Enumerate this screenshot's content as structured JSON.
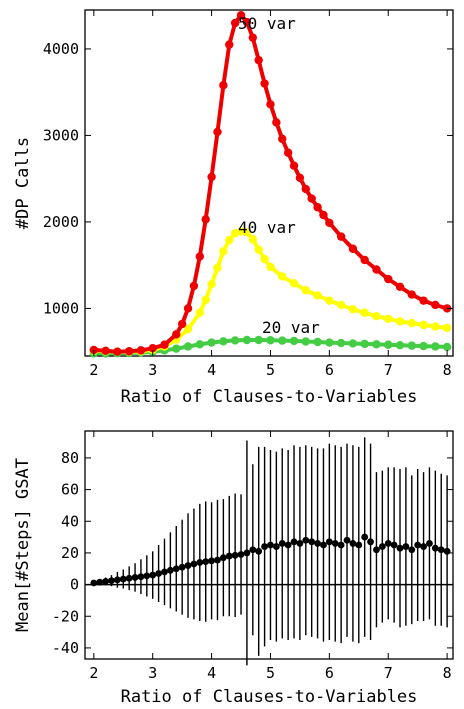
{
  "chart_data": [
    {
      "type": "line",
      "xlabel": "Ratio of Clauses-to-Variables",
      "ylabel": "#DP Calls",
      "xlim": [
        1.85,
        8.1
      ],
      "ylim": [
        450,
        4450
      ],
      "xticks": [
        "2",
        "3",
        "4",
        "5",
        "6",
        "7",
        "8"
      ],
      "yticks": [
        "1000",
        "2000",
        "3000",
        "4000"
      ],
      "grid": false,
      "legend": "none (series labeled directly on curves)",
      "series": [
        {
          "name": "50 var",
          "color": "#ee0000",
          "x": [
            2.0,
            2.2,
            2.4,
            2.6,
            2.8,
            3.0,
            3.2,
            3.4,
            3.5,
            3.6,
            3.7,
            3.8,
            3.9,
            4.0,
            4.1,
            4.2,
            4.3,
            4.4,
            4.5,
            4.6,
            4.7,
            4.8,
            4.9,
            5.0,
            5.1,
            5.2,
            5.3,
            5.4,
            5.5,
            5.6,
            5.7,
            5.8,
            5.9,
            6.0,
            6.2,
            6.4,
            6.6,
            6.8,
            7.0,
            7.2,
            7.4,
            7.6,
            7.8,
            8.0
          ],
          "y": [
            520,
            510,
            500,
            505,
            515,
            540,
            580,
            700,
            820,
            1000,
            1260,
            1600,
            2030,
            2520,
            3040,
            3580,
            4050,
            4300,
            4390,
            4310,
            4130,
            3870,
            3600,
            3360,
            3150,
            2960,
            2800,
            2650,
            2510,
            2380,
            2270,
            2170,
            2080,
            1990,
            1830,
            1690,
            1560,
            1450,
            1340,
            1250,
            1160,
            1090,
            1040,
            1000
          ]
        },
        {
          "name": "40 var",
          "color": "#ffff00",
          "x": [
            2.0,
            2.2,
            2.4,
            2.6,
            2.8,
            3.0,
            3.2,
            3.4,
            3.6,
            3.8,
            3.9,
            4.0,
            4.1,
            4.2,
            4.3,
            4.4,
            4.5,
            4.6,
            4.7,
            4.8,
            4.9,
            5.0,
            5.2,
            5.4,
            5.6,
            5.8,
            6.0,
            6.2,
            6.4,
            6.6,
            6.8,
            7.0,
            7.2,
            7.4,
            7.6,
            7.8,
            8.0
          ],
          "y": [
            510,
            505,
            500,
            500,
            505,
            520,
            560,
            640,
            760,
            950,
            1100,
            1280,
            1470,
            1660,
            1790,
            1870,
            1890,
            1880,
            1800,
            1680,
            1570,
            1480,
            1370,
            1290,
            1210,
            1150,
            1090,
            1040,
            990,
            950,
            910,
            880,
            850,
            830,
            810,
            790,
            775
          ]
        },
        {
          "name": "20 var",
          "color": "#44cc44",
          "x": [
            2.0,
            2.2,
            2.4,
            2.6,
            2.8,
            3.0,
            3.2,
            3.4,
            3.6,
            3.8,
            4.0,
            4.2,
            4.4,
            4.6,
            4.8,
            5.0,
            5.2,
            5.4,
            5.6,
            5.8,
            6.0,
            6.2,
            6.4,
            6.6,
            6.8,
            7.0,
            7.2,
            7.4,
            7.6,
            7.8,
            8.0
          ],
          "y": [
            480,
            480,
            482,
            485,
            490,
            500,
            515,
            535,
            560,
            585,
            605,
            620,
            630,
            635,
            635,
            632,
            628,
            624,
            618,
            612,
            605,
            600,
            595,
            590,
            585,
            580,
            575,
            570,
            565,
            560,
            555
          ]
        }
      ],
      "annotations": [
        "50 var",
        "40 var",
        "20 var"
      ]
    },
    {
      "type": "scatter",
      "subtype": "mean with error bars",
      "xlabel": "Ratio of Clauses-to-Variables",
      "ylabel": "Mean[#Steps] GSAT",
      "xlim": [
        1.85,
        8.1
      ],
      "ylim": [
        -47,
        97
      ],
      "xticks": [
        "2",
        "3",
        "4",
        "5",
        "6",
        "7",
        "8"
      ],
      "yticks": [
        "-40",
        "-20",
        "0",
        "20",
        "40",
        "60",
        "80"
      ],
      "grid": false,
      "zero_line": true,
      "series": [
        {
          "name": "",
          "x": [
            2.0,
            2.1,
            2.2,
            2.3,
            2.4,
            2.5,
            2.6,
            2.7,
            2.8,
            2.9,
            3.0,
            3.1,
            3.2,
            3.3,
            3.4,
            3.5,
            3.6,
            3.7,
            3.8,
            3.9,
            4.0,
            4.1,
            4.2,
            4.3,
            4.4,
            4.5,
            4.6,
            4.7,
            4.8,
            4.9,
            5.0,
            5.1,
            5.2,
            5.3,
            5.4,
            5.5,
            5.6,
            5.7,
            5.8,
            5.9,
            6.0,
            6.1,
            6.2,
            6.3,
            6.4,
            6.5,
            6.6,
            6.7,
            6.8,
            6.9,
            7.0,
            7.1,
            7.2,
            7.3,
            7.4,
            7.5,
            7.6,
            7.7,
            7.8,
            7.9,
            8.0
          ],
          "y": [
            1,
            1.5,
            2,
            2.5,
            3,
            3.5,
            4,
            4.5,
            5,
            5.5,
            6,
            7,
            8,
            9,
            10,
            11,
            12,
            13,
            14,
            14.5,
            15,
            15.5,
            17,
            18,
            18.5,
            19,
            20,
            22,
            21,
            24,
            25,
            24,
            26,
            25,
            27,
            26,
            28,
            27,
            26,
            25,
            27,
            26,
            25,
            28,
            26,
            25,
            30,
            27,
            22,
            24,
            26,
            25,
            23,
            24,
            22,
            25,
            24,
            26,
            23,
            22,
            21
          ],
          "err": [
            1,
            1.5,
            2.5,
            3.5,
            5,
            6,
            7.5,
            9,
            11,
            13,
            15,
            18,
            21,
            24,
            27,
            30,
            33,
            35,
            37,
            38,
            37,
            38,
            37,
            38,
            39,
            38,
            71,
            54,
            66,
            63,
            60,
            60,
            60,
            60,
            61,
            61,
            60,
            60,
            60,
            61,
            62,
            62,
            62,
            61,
            62,
            62,
            63,
            62,
            49,
            48,
            48,
            49,
            50,
            50,
            47,
            48,
            47,
            48,
            49,
            48,
            48
          ]
        }
      ]
    }
  ]
}
